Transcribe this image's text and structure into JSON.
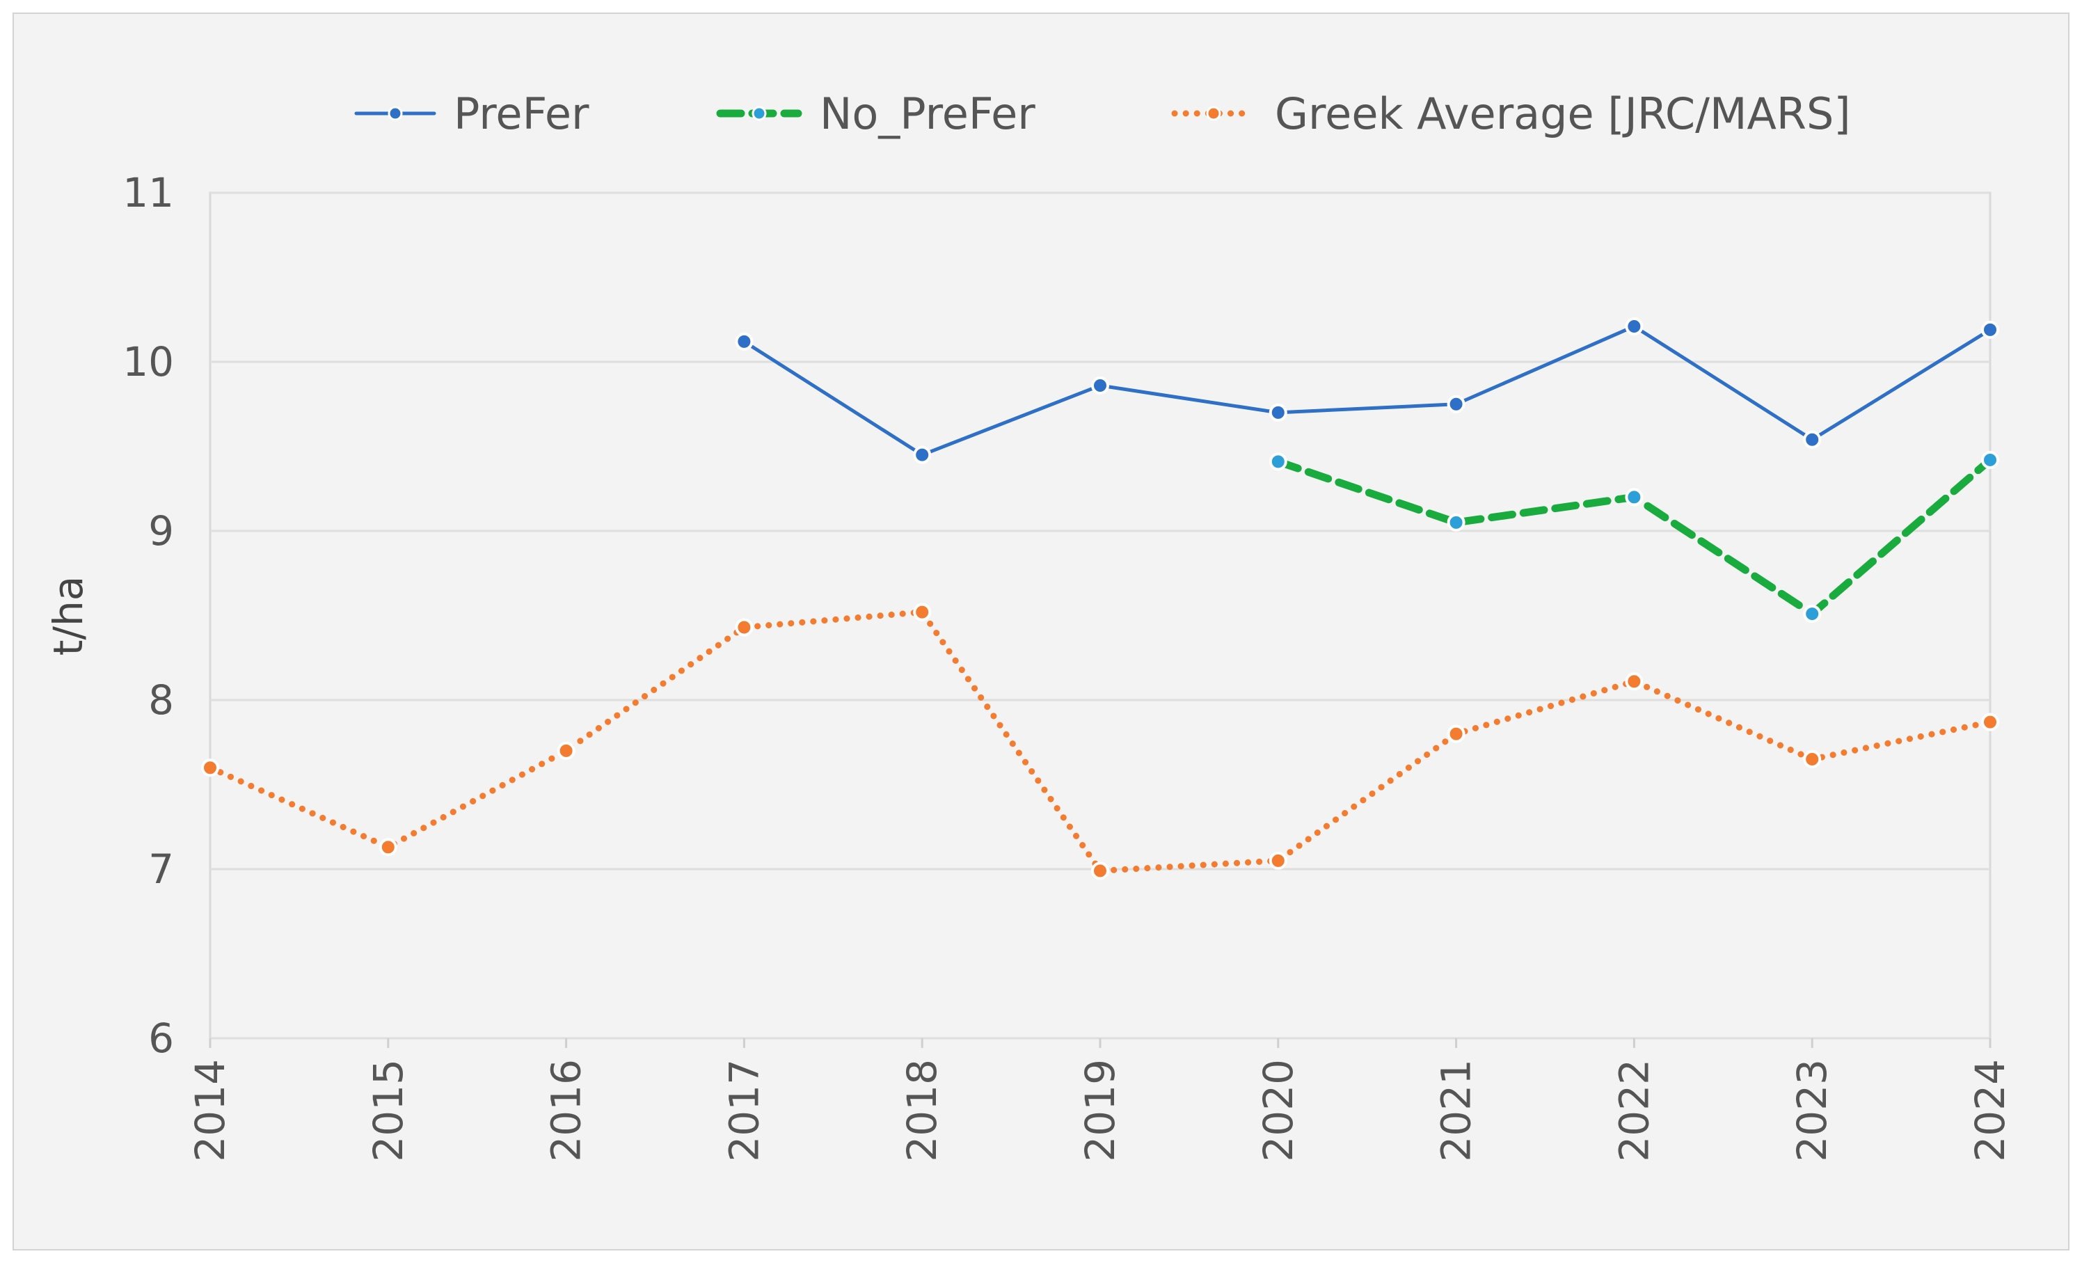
{
  "chart_data": {
    "type": "line",
    "title": "",
    "xlabel": "",
    "ylabel": "t/ha",
    "ylim": [
      6,
      11
    ],
    "yticks": [
      6,
      7,
      8,
      9,
      10,
      11
    ],
    "categories": [
      "2014",
      "2015",
      "2016",
      "2017",
      "2018",
      "2019",
      "2020",
      "2021",
      "2022",
      "2023",
      "2024"
    ],
    "grid": true,
    "legend_position": "top",
    "series": [
      {
        "name": "PreFer",
        "color": "#2e6fc7",
        "marker_color": "#2e6fc7",
        "style": "solid",
        "values": [
          null,
          null,
          null,
          10.12,
          9.45,
          9.86,
          9.7,
          9.75,
          10.21,
          9.54,
          10.19
        ]
      },
      {
        "name": "No_PreFer",
        "color": "#1aab3e",
        "marker_color": "#2d9fd8",
        "style": "dashed",
        "values": [
          null,
          null,
          null,
          null,
          null,
          null,
          9.41,
          9.05,
          9.2,
          8.51,
          9.42
        ]
      },
      {
        "name": "Greek Average [JRC/MARS]",
        "color": "#f47c30",
        "marker_color": "#f47c30",
        "style": "dotted",
        "values": [
          7.6,
          7.13,
          7.7,
          8.43,
          8.52,
          6.99,
          7.05,
          7.8,
          8.11,
          7.65,
          7.87
        ]
      }
    ]
  }
}
